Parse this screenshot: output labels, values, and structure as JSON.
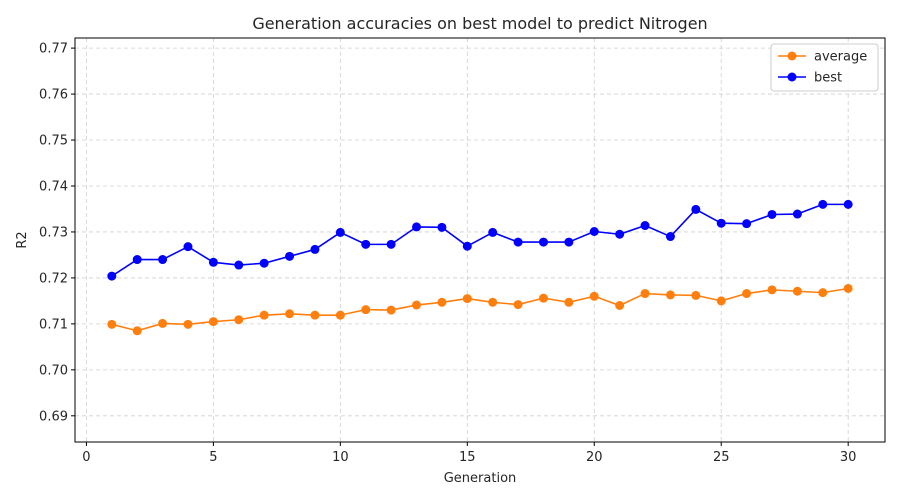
{
  "chart_data": {
    "type": "line",
    "title": "Generation accuracies on best model to predict Nitrogen",
    "xlabel": "Generation",
    "ylabel": "R2",
    "xlim": [
      -0.45,
      31.45
    ],
    "ylim": [
      0.6843,
      0.7722
    ],
    "xticks": [
      "0",
      "5",
      "10",
      "15",
      "20",
      "25",
      "30"
    ],
    "xtick_values": [
      0,
      5,
      10,
      15,
      20,
      25,
      30
    ],
    "yticks": [
      "0.69",
      "0.70",
      "0.71",
      "0.72",
      "0.73",
      "0.74",
      "0.75",
      "0.76",
      "0.77"
    ],
    "ytick_values": [
      0.69,
      0.7,
      0.71,
      0.72,
      0.73,
      0.74,
      0.75,
      0.76,
      0.77
    ],
    "grid": true,
    "legend_position": "top-right",
    "x": [
      1,
      2,
      3,
      4,
      5,
      6,
      7,
      8,
      9,
      10,
      11,
      12,
      13,
      14,
      15,
      16,
      17,
      18,
      19,
      20,
      21,
      22,
      23,
      24,
      25,
      26,
      27,
      28,
      29,
      30
    ],
    "series": [
      {
        "name": "average",
        "color": "#ff7f0e",
        "values": [
          0.7099,
          0.7085,
          0.7101,
          0.7099,
          0.7105,
          0.7109,
          0.7119,
          0.7122,
          0.7119,
          0.7119,
          0.7131,
          0.713,
          0.7141,
          0.7147,
          0.7155,
          0.7147,
          0.7142,
          0.7156,
          0.7147,
          0.716,
          0.714,
          0.7166,
          0.7163,
          0.7162,
          0.715,
          0.7166,
          0.7174,
          0.7171,
          0.7168,
          0.7177
        ]
      },
      {
        "name": "best",
        "color": "#0000ff",
        "values": [
          0.7204,
          0.724,
          0.724,
          0.7268,
          0.7234,
          0.7228,
          0.7232,
          0.7247,
          0.7262,
          0.7299,
          0.7273,
          0.7273,
          0.7311,
          0.731,
          0.7269,
          0.7299,
          0.7278,
          0.7278,
          0.7278,
          0.7301,
          0.7295,
          0.7314,
          0.729,
          0.7349,
          0.7319,
          0.7318,
          0.7338,
          0.7339,
          0.736,
          0.736
        ]
      }
    ]
  }
}
